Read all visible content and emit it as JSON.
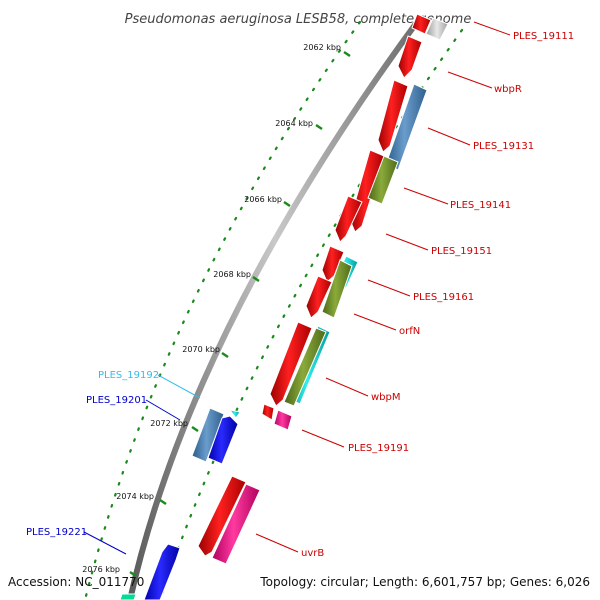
{
  "title": "Pseudomonas aeruginosa LESB58, complete genome",
  "footer": {
    "accession": "Accession: NC_011770",
    "summary": "Topology: circular; Length: 6,601,757 bp; Genes: 6,026"
  },
  "ticks": [
    {
      "label": "2062 kbp"
    },
    {
      "label": "2064 kbp"
    },
    {
      "label": "2066 kbp"
    },
    {
      "label": "2068 kbp"
    },
    {
      "label": "2070 kbp"
    },
    {
      "label": "2072 kbp"
    },
    {
      "label": "2074 kbp"
    },
    {
      "label": "2076 kbp"
    }
  ],
  "gene_labels": [
    {
      "text": "PLES_19111",
      "color": "#cc0000"
    },
    {
      "text": "wbpR",
      "color": "#cc0000"
    },
    {
      "text": "PLES_19131",
      "color": "#cc0000"
    },
    {
      "text": "PLES_19141",
      "color": "#cc0000"
    },
    {
      "text": "PLES_19151",
      "color": "#cc0000"
    },
    {
      "text": "PLES_19161",
      "color": "#cc0000"
    },
    {
      "text": "orfN",
      "color": "#cc0000"
    },
    {
      "text": "wbpM",
      "color": "#cc0000"
    },
    {
      "text": "PLES_19191",
      "color": "#cc0000"
    },
    {
      "text": "uvrB",
      "color": "#cc0000"
    },
    {
      "text": "PLES_19192",
      "color": "#33bbee"
    },
    {
      "text": "PLES_19201",
      "color": "#0000cc"
    },
    {
      "text": "PLES_19221",
      "color": "#0000cc"
    }
  ],
  "colors": {
    "forward_cds": "#ff0000",
    "cog_blue": "#4682b4",
    "cog_olive": "#6b8e23",
    "cog_cyan": "#00cccc",
    "cog_magenta": "#ff1493",
    "reverse_cds": "#0000ff",
    "backbone": "#888888",
    "tick": "#1a8a1a"
  }
}
